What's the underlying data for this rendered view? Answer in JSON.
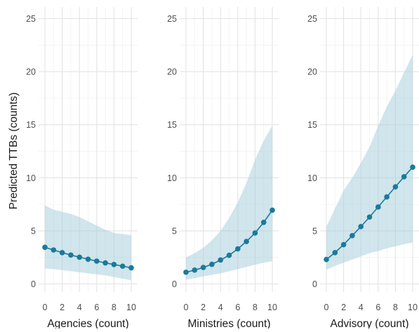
{
  "chart_data": {
    "type": "line",
    "ylabel": "Predicted TTBs (counts)",
    "ylim": [
      0,
      25
    ],
    "y_ticks": [
      0,
      5,
      10,
      15,
      20,
      25
    ],
    "x_ticks": [
      0,
      2,
      4,
      6,
      8,
      10
    ],
    "xlim": [
      0,
      10
    ],
    "grid": true,
    "colors": {
      "line": "#1a7a9a",
      "ribbon": "#a9cfdc"
    },
    "panels": [
      {
        "xlabel": "Agencies (count)",
        "x": [
          0,
          1,
          2,
          3,
          4,
          5,
          6,
          7,
          8,
          9,
          10
        ],
        "y": [
          3.45,
          3.2,
          2.95,
          2.72,
          2.52,
          2.33,
          2.15,
          1.98,
          1.83,
          1.67,
          1.52
        ],
        "lower": [
          1.45,
          1.4,
          1.3,
          1.2,
          1.1,
          1.0,
          0.9,
          0.8,
          0.65,
          0.5,
          0.35
        ],
        "upper": [
          7.4,
          7.0,
          6.8,
          6.6,
          6.3,
          5.9,
          5.5,
          5.1,
          4.8,
          4.7,
          4.6
        ]
      },
      {
        "xlabel": "Ministries (count)",
        "x": [
          0,
          1,
          2,
          3,
          4,
          5,
          6,
          7,
          8,
          9,
          10
        ],
        "y": [
          1.1,
          1.3,
          1.55,
          1.85,
          2.25,
          2.7,
          3.3,
          4.0,
          4.8,
          5.8,
          6.95
        ],
        "lower": [
          0.4,
          0.55,
          0.7,
          0.85,
          1.0,
          1.2,
          1.4,
          1.6,
          1.8,
          2.0,
          2.15
        ],
        "upper": [
          2.5,
          2.9,
          3.4,
          4.1,
          5.0,
          6.2,
          7.7,
          9.5,
          11.7,
          13.5,
          14.9
        ]
      },
      {
        "xlabel": "Advisory (count)",
        "x": [
          0,
          1,
          2,
          3,
          4,
          5,
          6,
          7,
          8,
          9,
          10
        ],
        "y": [
          2.3,
          2.95,
          3.7,
          4.55,
          5.4,
          6.3,
          7.25,
          8.2,
          9.15,
          10.1,
          11.0
        ],
        "lower": [
          1.35,
          1.7,
          2.0,
          2.3,
          2.6,
          2.9,
          3.1,
          3.35,
          3.55,
          3.75,
          3.9
        ],
        "upper": [
          5.4,
          7.1,
          8.8,
          10.0,
          11.4,
          12.9,
          14.9,
          16.7,
          18.2,
          19.9,
          21.6
        ]
      }
    ]
  }
}
